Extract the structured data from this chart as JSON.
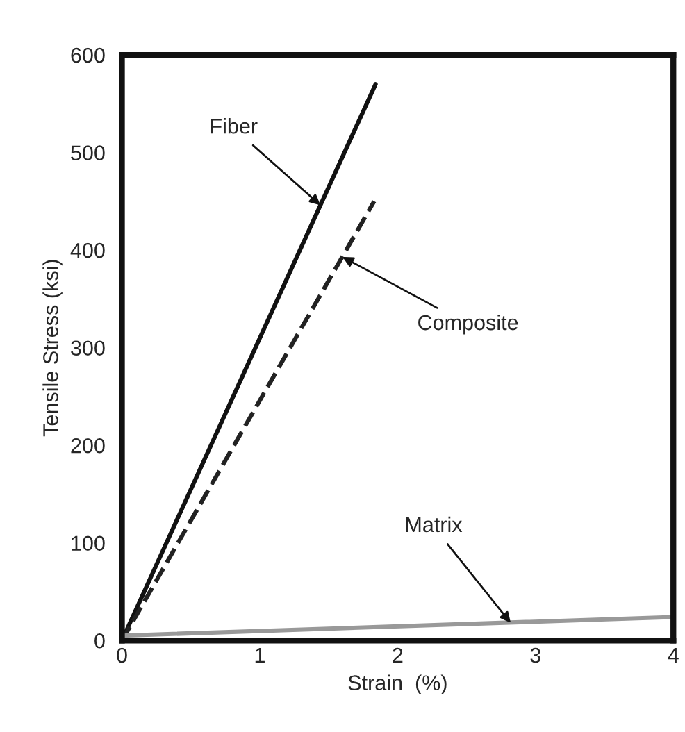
{
  "chart_data": {
    "type": "line",
    "xlabel": "Strain  (%)",
    "ylabel": "Tensile Stress (ksi)",
    "xlim": [
      0,
      4
    ],
    "ylim": [
      0,
      600
    ],
    "xticks": [
      0,
      1,
      2,
      3,
      4
    ],
    "yticks": [
      0,
      100,
      200,
      300,
      400,
      500,
      600
    ],
    "grid": false,
    "marker": "none",
    "series": [
      {
        "color": "#111111",
        "x": [
          0,
          1.84
        ],
        "values": [
          0,
          570
        ],
        "line_style": "solid"
      },
      {
        "color": "#222222",
        "x": [
          0,
          1.83
        ],
        "values": [
          0,
          450
        ],
        "line_style": "dashed"
      },
      {
        "color": "#999999",
        "x": [
          0,
          4
        ],
        "values": [
          5,
          24
        ],
        "line_style": "solid"
      }
    ],
    "annotations": [
      {
        "text": "Fiber",
        "x": 1.44,
        "y": 446
      },
      {
        "text": "Composite",
        "x": 1.6,
        "y": 393
      },
      {
        "text": "Matrix",
        "x": 2.82,
        "y": 18
      }
    ]
  }
}
